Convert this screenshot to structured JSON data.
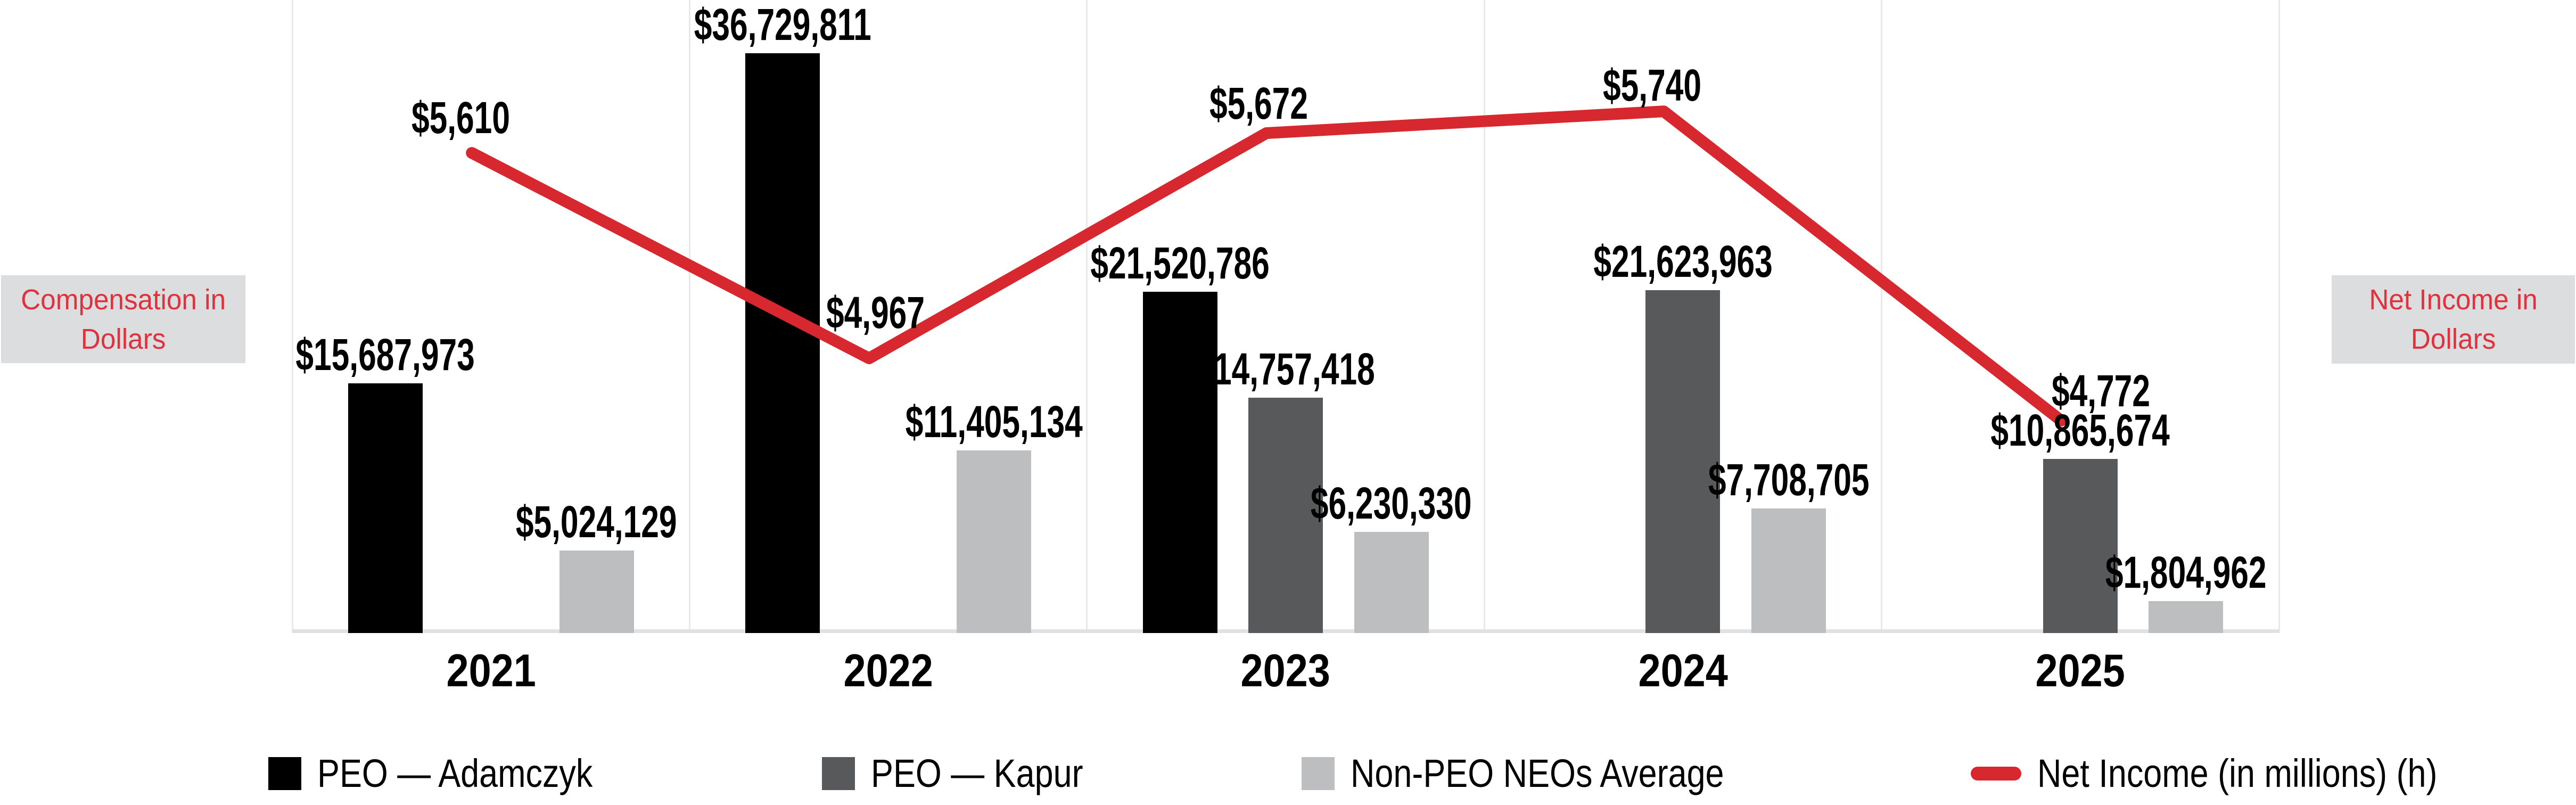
{
  "left_axis_label": {
    "line1": "Compensation in",
    "line2": "Dollars"
  },
  "right_axis_label": {
    "line1": "Net Income in",
    "line2": "Dollars"
  },
  "colors": {
    "bar_black": "#000000",
    "bar_dark_gray": "#58595b",
    "bar_light_gray": "#bcbec0",
    "line_red": "#d7272f",
    "axis_label_red": "#e0313c",
    "axis_box_bg": "#dcddde",
    "divider_gray": "#e8e9eb",
    "baseline_gray": "#e0e1e3"
  },
  "chart_data": {
    "type": "bar+line",
    "title": "",
    "categories": [
      "2021",
      "2022",
      "2023",
      "2024",
      "2025"
    ],
    "bar_series": [
      {
        "name": "PEO — Adamczyk",
        "key": "peo-adamczyk",
        "color": "#000000",
        "slot": 0,
        "values": [
          15687973,
          36729811,
          21520786,
          null,
          null
        ],
        "labels": [
          "$15,687,973",
          "$36,729,811",
          "$21,520,786",
          null,
          null
        ]
      },
      {
        "name": "PEO — Kapur",
        "key": "peo-kapur",
        "color": "#58595b",
        "slot": 1,
        "values": [
          null,
          null,
          14757418,
          21623963,
          10865674
        ],
        "labels": [
          null,
          null,
          "$14,757,418",
          "$21,623,963",
          "$10,865,674"
        ]
      },
      {
        "name": "Non-PEO NEOs Average",
        "key": "non-peo-neos-average",
        "color": "#bcbec0",
        "slot": 2,
        "values": [
          5024129,
          11405134,
          6230330,
          7708705,
          1804962
        ],
        "labels": [
          "$5,024,129",
          "$11,405,134",
          "$6,230,330",
          "$7,708,705",
          "$1,804,962"
        ]
      }
    ],
    "line_series": {
      "name": "Net Income (in millions) (h)",
      "key": "net-income",
      "color": "#d7272f",
      "values": [
        5610,
        4967,
        5672,
        5740,
        4772
      ],
      "labels": [
        "$5,610",
        "$4,967",
        "$5,672",
        "$5,740",
        "$4,772"
      ]
    },
    "layout_hints": {
      "legend_position": "bottom",
      "gridlines": "vertical panel dividers per year",
      "value_labels": "above bars and above line vertices",
      "axes": "no numeric tick labels shown; left = compensation in dollars, right = net income in dollars"
    }
  },
  "legend": {
    "items": [
      {
        "label": "PEO — Adamczyk",
        "swatch": "black-square"
      },
      {
        "label": "PEO — Kapur",
        "swatch": "dark-gray-square"
      },
      {
        "label": "Non-PEO NEOs Average",
        "swatch": "light-gray-square"
      },
      {
        "label": "Net Income (in millions) (h)",
        "swatch": "red-line"
      }
    ]
  }
}
